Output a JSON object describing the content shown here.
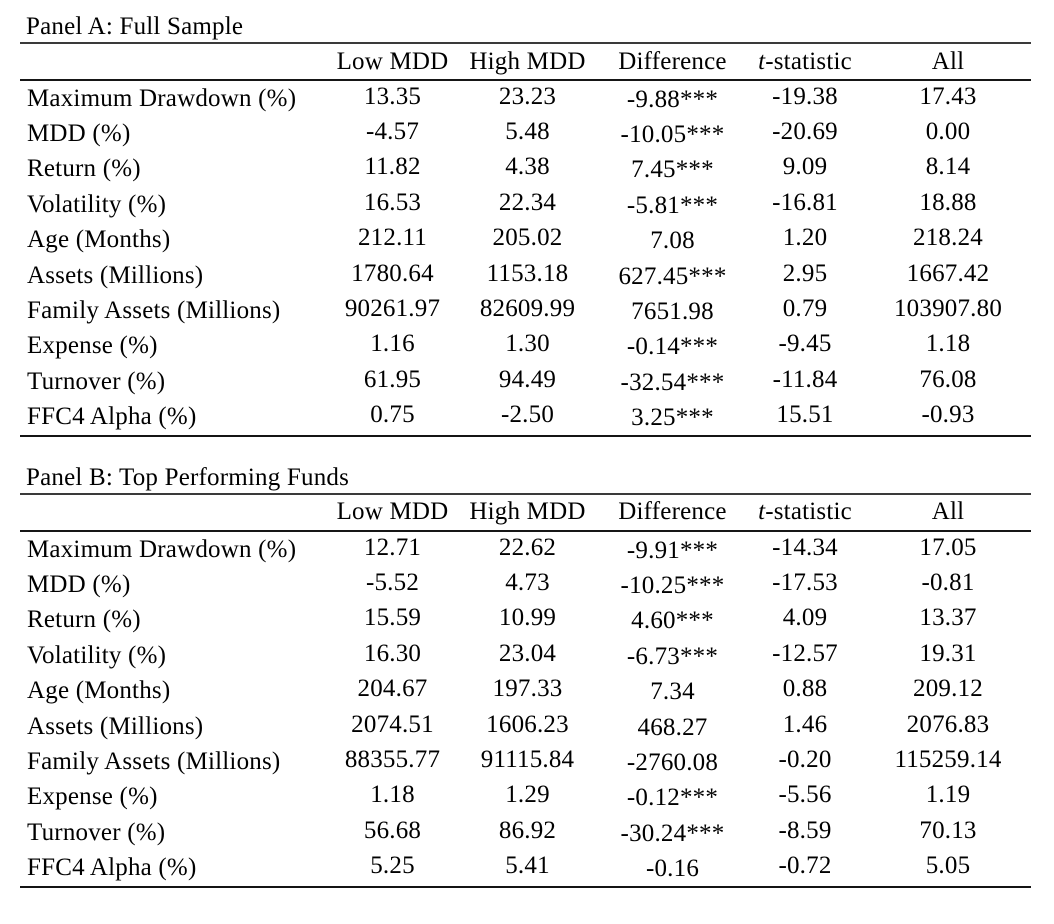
{
  "page": {
    "background": "#ffffff",
    "text_color": "#000000",
    "rule_color": "#161616"
  },
  "table": {
    "columns": {
      "low_mdd": "Low MDD",
      "high_mdd": "High MDD",
      "difference": "Difference",
      "t_statistic": {
        "italic": "t",
        "rest": "-statistic"
      },
      "all": "All"
    },
    "panels": [
      {
        "title": "Panel A: Full Sample",
        "rows": [
          {
            "label": "Maximum Drawdown (%)",
            "values": [
              "13.35",
              "23.23",
              "-9.88***",
              "-19.38",
              "17.43"
            ]
          },
          {
            "label": "MDD (%)",
            "values": [
              "-4.57",
              "5.48",
              "-10.05***",
              "-20.69",
              "0.00"
            ]
          },
          {
            "label": "Return (%)",
            "values": [
              "11.82",
              "4.38",
              "7.45***",
              "9.09",
              "8.14"
            ]
          },
          {
            "label": "Volatility (%)",
            "values": [
              "16.53",
              "22.34",
              "-5.81***",
              "-16.81",
              "18.88"
            ]
          },
          {
            "label": "Age (Months)",
            "values": [
              "212.11",
              "205.02",
              "7.08",
              "1.20",
              "218.24"
            ]
          },
          {
            "label": "Assets (Millions)",
            "values": [
              "1780.64",
              "1153.18",
              "627.45***",
              "2.95",
              "1667.42"
            ]
          },
          {
            "label": "Family Assets (Millions)",
            "values": [
              "90261.97",
              "82609.99",
              "7651.98",
              "0.79",
              "103907.80"
            ]
          },
          {
            "label": "Expense (%)",
            "values": [
              "1.16",
              "1.30",
              "-0.14***",
              "-9.45",
              "1.18"
            ]
          },
          {
            "label": "Turnover (%)",
            "values": [
              "61.95",
              "94.49",
              "-32.54***",
              "-11.84",
              "76.08"
            ]
          },
          {
            "label": "FFC4 Alpha (%)",
            "values": [
              "0.75",
              "-2.50",
              "3.25***",
              "15.51",
              "-0.93"
            ]
          }
        ]
      },
      {
        "title": "Panel B: Top Performing Funds",
        "rows": [
          {
            "label": "Maximum Drawdown (%)",
            "values": [
              "12.71",
              "22.62",
              "-9.91***",
              "-14.34",
              "17.05"
            ]
          },
          {
            "label": "MDD (%)",
            "values": [
              "-5.52",
              "4.73",
              "-10.25***",
              "-17.53",
              "-0.81"
            ]
          },
          {
            "label": "Return (%)",
            "values": [
              "15.59",
              "10.99",
              "4.60***",
              "4.09",
              "13.37"
            ]
          },
          {
            "label": "Volatility (%)",
            "values": [
              "16.30",
              "23.04",
              "-6.73***",
              "-12.57",
              "19.31"
            ]
          },
          {
            "label": "Age (Months)",
            "values": [
              "204.67",
              "197.33",
              "7.34",
              "0.88",
              "209.12"
            ]
          },
          {
            "label": "Assets (Millions)",
            "values": [
              "2074.51",
              "1606.23",
              "468.27",
              "1.46",
              "2076.83"
            ]
          },
          {
            "label": "Family Assets (Millions)",
            "values": [
              "88355.77",
              "91115.84",
              "-2760.08",
              "-0.20",
              "115259.14"
            ]
          },
          {
            "label": "Expense (%)",
            "values": [
              "1.18",
              "1.29",
              "-0.12***",
              "-5.56",
              "1.19"
            ]
          },
          {
            "label": "Turnover (%)",
            "values": [
              "56.68",
              "86.92",
              "-30.24***",
              "-8.59",
              "70.13"
            ]
          },
          {
            "label": "FFC4 Alpha (%)",
            "values": [
              "5.25",
              "5.41",
              "-0.16",
              "-0.72",
              "5.05"
            ]
          }
        ]
      }
    ]
  }
}
